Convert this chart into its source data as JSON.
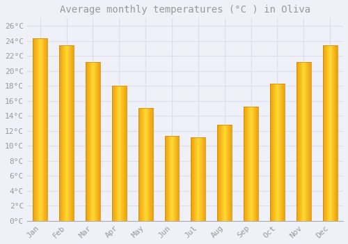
{
  "title": "Average monthly temperatures (°C ) in Oliva",
  "months": [
    "Jan",
    "Feb",
    "Mar",
    "Apr",
    "May",
    "Jun",
    "Jul",
    "Aug",
    "Sep",
    "Oct",
    "Nov",
    "Dec"
  ],
  "temperatures": [
    24.3,
    23.4,
    21.2,
    18.0,
    15.0,
    11.3,
    11.1,
    12.8,
    15.2,
    18.3,
    21.2,
    23.4
  ],
  "bar_color": "#FFAA00",
  "bar_edge_color": "#CC8800",
  "background_color": "#F0F0F8",
  "plot_bg_color": "#F0F0F8",
  "grid_color": "#DDDDEE",
  "text_color": "#999999",
  "ylim": [
    0,
    27
  ],
  "yticks": [
    0,
    2,
    4,
    6,
    8,
    10,
    12,
    14,
    16,
    18,
    20,
    22,
    24,
    26
  ],
  "title_fontsize": 10,
  "tick_fontsize": 8,
  "bar_width": 0.55
}
